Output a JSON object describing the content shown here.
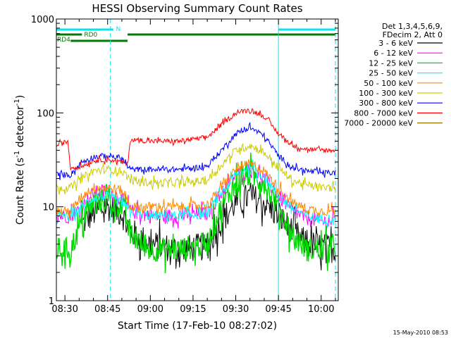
{
  "chart_data": {
    "type": "line",
    "title": "HESSI Observing Summary Count Rates",
    "xlabel": "Start Time (17-Feb-10 08:27:02)",
    "ylabel_main": "Count Rate (s",
    "ylabel_sup1": "-1",
    "ylabel_mid": " detector",
    "ylabel_sup2": "-1",
    "ylabel_end": ")",
    "footer_date": "15-May-2010 08:53",
    "y_scale": "log",
    "ylim": [
      1,
      1000
    ],
    "xlim": [
      "08:27",
      "10:06"
    ],
    "x_ticks": [
      "08:30",
      "08:45",
      "09:00",
      "09:15",
      "09:30",
      "09:45",
      "10:00"
    ],
    "y_ticks": [
      {
        "value": 1,
        "label": "1"
      },
      {
        "value": 10,
        "label": "10"
      },
      {
        "value": 100,
        "label": "100"
      },
      {
        "value": 1000,
        "label": "1000"
      }
    ],
    "legend_header": [
      "Det 1,3,4,5,6,9,",
      "FDecim 2, Att 0"
    ],
    "legend_position": "top-right, outside plot",
    "flags": [
      {
        "label": "N",
        "color": "#00e5ee",
        "segments": [
          [
            "08:27",
            "08:47"
          ],
          [
            "09:45",
            "10:05"
          ]
        ]
      },
      {
        "label": "RD0",
        "color": "#007a00",
        "segments": [
          [
            "08:27",
            "08:36"
          ],
          [
            "08:52",
            "10:05"
          ]
        ]
      },
      {
        "label": "RD4",
        "color": "#007a00",
        "segments": [
          [
            "08:32",
            "08:52"
          ]
        ]
      }
    ],
    "vlines": [
      {
        "time": "08:27",
        "style": "solid",
        "color": "#00e5ee"
      },
      {
        "time": "08:46",
        "style": "dashed",
        "color": "#00e5ee"
      },
      {
        "time": "09:45",
        "style": "solid",
        "color": "#00e5ee"
      },
      {
        "time": "10:05",
        "style": "dashed",
        "color": "#00e5ee"
      }
    ],
    "x": [
      "08:27",
      "08:31",
      "08:32",
      "08:36",
      "08:40",
      "08:45",
      "08:50",
      "08:52",
      "08:53",
      "09:00",
      "09:10",
      "09:20",
      "09:25",
      "09:30",
      "09:35",
      "09:40",
      "09:45",
      "09:50",
      "09:55",
      "10:00",
      "10:05"
    ],
    "series": [
      {
        "name": "3 - 6 keV",
        "color": "#000000",
        "values": [
          null,
          null,
          null,
          6.5,
          8.5,
          10,
          8.5,
          6.5,
          5.5,
          4.0,
          3.5,
          3.8,
          7,
          11,
          13,
          11,
          8,
          5.5,
          4.0,
          3.8,
          3.5
        ]
      },
      {
        "name": "6 - 12 keV",
        "color": "#ff00ff",
        "values": [
          8,
          8,
          8,
          10,
          14,
          15,
          12,
          10,
          9,
          8,
          8,
          8.5,
          14,
          22,
          26,
          20,
          13,
          9,
          7.5,
          7,
          7
        ]
      },
      {
        "name": "12 - 25 keV",
        "color": "#00dd00",
        "values": [
          3.5,
          3.5,
          3.5,
          7,
          11,
          12,
          10,
          7,
          5,
          3.5,
          3.5,
          4,
          10,
          18,
          22,
          18,
          10,
          5,
          3.5,
          3.5,
          3.5
        ]
      },
      {
        "name": "25 - 50 keV",
        "color": "#00ffff",
        "values": [
          8,
          8,
          8,
          10,
          12.5,
          13,
          11,
          9.5,
          9,
          8,
          8,
          8.5,
          14,
          22,
          27,
          21,
          13,
          9.5,
          8,
          7.5,
          7.5
        ]
      },
      {
        "name": "50 - 100 keV",
        "color": "#ff8800",
        "values": [
          9,
          9,
          9,
          13,
          16,
          16,
          15,
          12,
          10,
          10,
          10,
          10.5,
          16,
          25,
          29,
          24,
          16,
          11,
          9.5,
          9,
          9
        ]
      },
      {
        "name": "100 - 300 keV",
        "color": "#cccc00",
        "values": [
          16,
          16,
          16,
          20,
          24,
          25,
          24,
          21,
          19,
          18,
          18,
          19,
          28,
          40,
          45,
          38,
          26,
          19,
          17,
          16,
          16
        ]
      },
      {
        "name": "300 - 800 keV",
        "color": "#0000ff",
        "values": [
          22,
          22,
          22,
          30,
          34,
          35,
          33,
          27,
          25,
          25,
          25,
          27,
          40,
          60,
          70,
          57,
          35,
          26,
          24,
          23,
          23
        ]
      },
      {
        "name": "800 - 7000 keV",
        "color": "#ff0000",
        "values": [
          45,
          50,
          26,
          27,
          31,
          32,
          30,
          28,
          52,
          50,
          50,
          55,
          75,
          100,
          108,
          92,
          60,
          45,
          41,
          40,
          40
        ]
      },
      {
        "name": "7000 - 20000 keV",
        "color": "#8b7500",
        "values": [
          null,
          null,
          null,
          null,
          null,
          null,
          null,
          null,
          null,
          null,
          null,
          null,
          null,
          null,
          null,
          null,
          null,
          null,
          null,
          null,
          null
        ]
      }
    ]
  }
}
